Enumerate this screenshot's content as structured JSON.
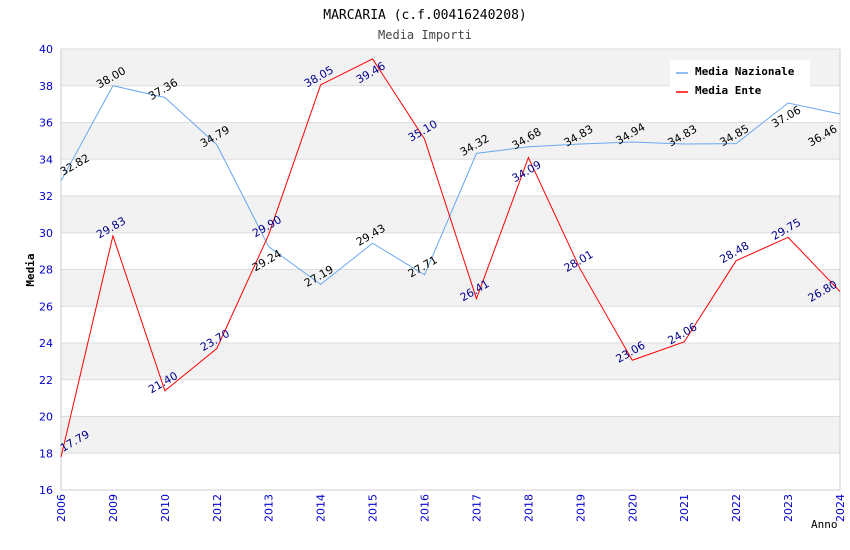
{
  "chart_data": {
    "type": "line",
    "title": "MARCARIA (c.f.00416240208)",
    "subtitle": "Media Importi",
    "xlabel": "Anno",
    "ylabel": "Media",
    "ylim": [
      16,
      40
    ],
    "yticks": [
      16,
      18,
      20,
      22,
      24,
      26,
      28,
      30,
      32,
      34,
      36,
      38,
      40
    ],
    "categories": [
      "2006",
      "2009",
      "2010",
      "2012",
      "2013",
      "2014",
      "2015",
      "2016",
      "2017",
      "2018",
      "2019",
      "2020",
      "2021",
      "2022",
      "2023",
      "2024"
    ],
    "series": [
      {
        "name": "Media Nazionale",
        "color": "#6aa8f0",
        "label_color": "#000000",
        "values": [
          32.82,
          38.0,
          37.36,
          34.79,
          29.24,
          27.19,
          29.43,
          27.71,
          34.32,
          34.68,
          34.83,
          34.94,
          34.83,
          34.85,
          37.06,
          36.46
        ]
      },
      {
        "name": "Media Ente",
        "color": "#ff0000",
        "label_color": "#00008b",
        "values": [
          17.79,
          29.83,
          21.4,
          23.7,
          29.9,
          38.05,
          39.46,
          35.1,
          26.41,
          34.09,
          28.01,
          23.06,
          24.06,
          28.48,
          29.75,
          26.8
        ]
      }
    ],
    "legend": "top-right",
    "grid": true
  }
}
